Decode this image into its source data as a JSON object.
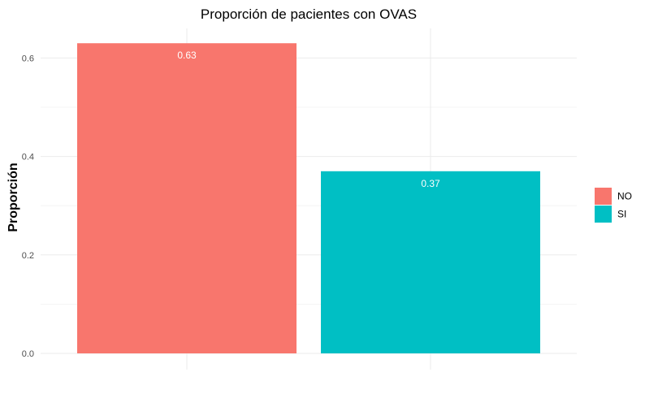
{
  "chart_data": {
    "type": "bar",
    "title": "Proporción de pacientes con OVAS",
    "xlabel": "",
    "ylabel": "Proporción",
    "categories": [
      "NO",
      "SI"
    ],
    "values": [
      0.63,
      0.37
    ],
    "data_labels": [
      "0.63",
      "0.37"
    ],
    "colors": [
      "#F8766D",
      "#00BFC4"
    ],
    "ylim": [
      0,
      0.66
    ],
    "y_ticks": [
      0,
      0.2,
      0.4,
      0.6
    ],
    "y_tick_labels": [
      "0.0",
      "0.2",
      "0.4",
      "0.6"
    ],
    "grid": true,
    "legend": {
      "position": "right",
      "entries": [
        {
          "label": "NO",
          "color": "#F8766D"
        },
        {
          "label": "SI",
          "color": "#00BFC4"
        }
      ]
    }
  }
}
